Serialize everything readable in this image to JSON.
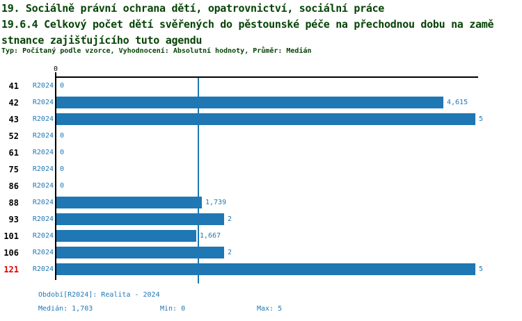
{
  "header": {
    "title_line1": "19. Sociálně právní ochrana dětí, opatrovnictví, sociální práce",
    "title_line2": "19.6.4 Celkový počet dětí svěřených do pěstounské péče na přechodnou dobu na zamě",
    "title_line3": "stnance zajišťujícího tuto agendu",
    "meta": "Typ: Počítaný podle vzorce, Vyhodnocení: Absolutní hodnoty, Průměr: Medián"
  },
  "colors": {
    "bar_blue": "#1f77b4",
    "blue_text": "#1f77b4",
    "title_green": "#064306",
    "highlight_red": "#dd0000",
    "axis_black": "#000000"
  },
  "chart_data": {
    "type": "bar",
    "orientation": "horizontal",
    "title": "19.6.4 Celkový počet dětí svěřených do pěstounské péče na přechodnou dobu na zaměstnance zajišťujícího tuto agendu",
    "xlabel": "",
    "ylabel": "",
    "xlim": [
      0,
      5
    ],
    "origin_tick_label": "0",
    "grid": false,
    "legend_position": "none",
    "median_line_value": 1.703,
    "categories": [
      "41",
      "42",
      "43",
      "52",
      "61",
      "75",
      "86",
      "88",
      "93",
      "101",
      "106",
      "121"
    ],
    "series": [
      {
        "name": "R2024",
        "values": [
          0,
          4.615,
          5,
          0,
          0,
          0,
          0,
          1.739,
          2,
          1.667,
          2,
          5
        ]
      }
    ],
    "rows": [
      {
        "category": "41",
        "period": "R2024",
        "value": 0,
        "value_label": "0",
        "highlight": false
      },
      {
        "category": "42",
        "period": "R2024",
        "value": 4.615,
        "value_label": "4,615",
        "highlight": false
      },
      {
        "category": "43",
        "period": "R2024",
        "value": 5,
        "value_label": "5",
        "highlight": false
      },
      {
        "category": "52",
        "period": "R2024",
        "value": 0,
        "value_label": "0",
        "highlight": false
      },
      {
        "category": "61",
        "period": "R2024",
        "value": 0,
        "value_label": "0",
        "highlight": false
      },
      {
        "category": "75",
        "period": "R2024",
        "value": 0,
        "value_label": "0",
        "highlight": false
      },
      {
        "category": "86",
        "period": "R2024",
        "value": 0,
        "value_label": "0",
        "highlight": false
      },
      {
        "category": "88",
        "period": "R2024",
        "value": 1.739,
        "value_label": "1,739",
        "highlight": false
      },
      {
        "category": "93",
        "period": "R2024",
        "value": 2,
        "value_label": "2",
        "highlight": false
      },
      {
        "category": "101",
        "period": "R2024",
        "value": 1.667,
        "value_label": "1,667",
        "highlight": false
      },
      {
        "category": "106",
        "period": "R2024",
        "value": 2,
        "value_label": "2",
        "highlight": false
      },
      {
        "category": "121",
        "period": "R2024",
        "value": 5,
        "value_label": "5",
        "highlight": true
      }
    ]
  },
  "footer": {
    "period_info": "Období[R2024]: Realita - 2024",
    "median": "Medián: 1,703",
    "min": "Min: 0",
    "max": "Max: 5"
  }
}
